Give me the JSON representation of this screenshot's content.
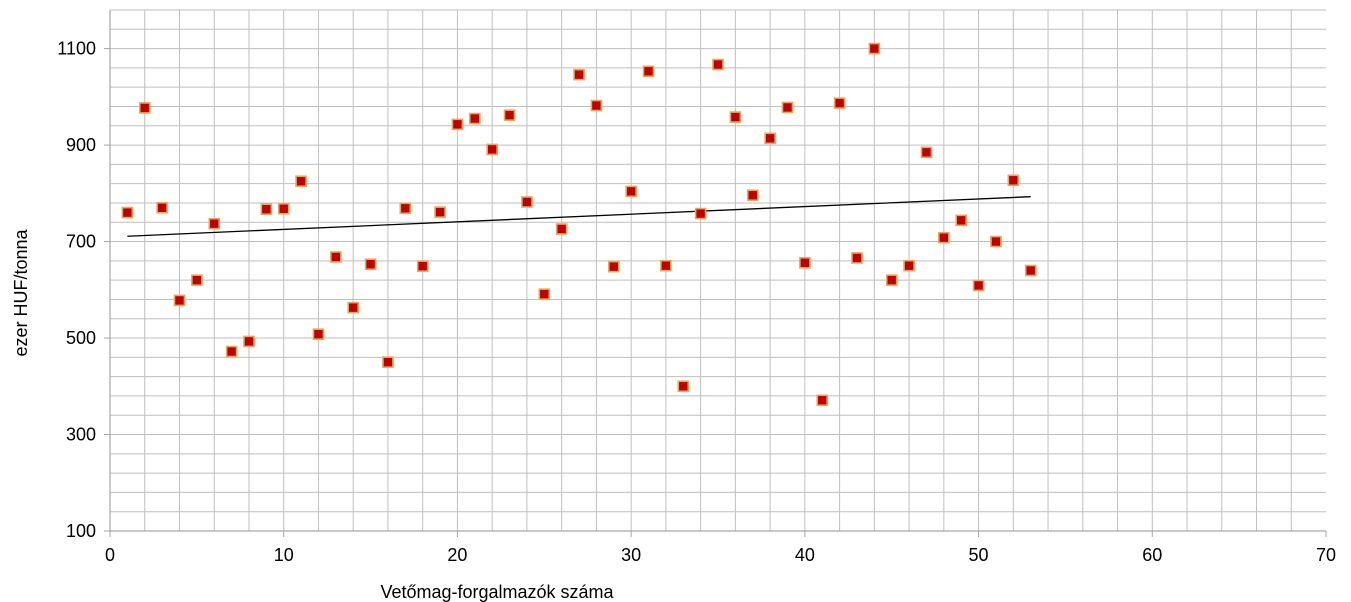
{
  "chart_data": {
    "type": "scatter",
    "title": "",
    "xlabel": "Vetőmag-forgalmazók száma",
    "ylabel": "ezer HUF/tonna",
    "xlim": [
      0,
      70
    ],
    "ylim": [
      100,
      1180
    ],
    "x_ticks": [
      0,
      10,
      20,
      30,
      40,
      50,
      60,
      70
    ],
    "y_ticks": [
      100,
      300,
      500,
      700,
      900,
      1100
    ],
    "x_ticks_labels": [
      "0",
      "10",
      "20",
      "30",
      "40",
      "50",
      "60",
      "70"
    ],
    "y_ticks_labels": [
      "100",
      "300",
      "500",
      "700",
      "900",
      "1100"
    ],
    "grid": true,
    "legend": "none",
    "colors": {
      "marker_fill": "#c00000",
      "marker_stroke": "#e6a85c",
      "trendline": "#000000",
      "grid": "#bfbfbf"
    },
    "trendline": {
      "type": "linear",
      "x": [
        1,
        53
      ],
      "y": [
        711,
        793
      ]
    },
    "series": [
      {
        "x": [
          1,
          2,
          3,
          4,
          5,
          6,
          7,
          8,
          9,
          10,
          11,
          12,
          13,
          14,
          15,
          16,
          17,
          18,
          19,
          20,
          21,
          22,
          23,
          24,
          25,
          26,
          27,
          28,
          29,
          30,
          31,
          32,
          33,
          34,
          35,
          36,
          37,
          38,
          39,
          40,
          41,
          42,
          43,
          44,
          45,
          46,
          47,
          48,
          49,
          50,
          51,
          52,
          53
        ],
        "y": [
          760,
          977,
          770,
          578,
          620,
          737,
          472,
          493,
          767,
          768,
          825,
          508,
          668,
          563,
          653,
          450,
          769,
          649,
          761,
          943,
          955,
          891,
          962,
          782,
          591,
          726,
          1046,
          982,
          648,
          804,
          1053,
          650,
          400,
          758,
          1067,
          958,
          796,
          914,
          978,
          656,
          371,
          987,
          666,
          1100,
          620,
          650,
          885,
          708,
          744,
          609,
          700,
          827,
          640
        ]
      }
    ]
  }
}
